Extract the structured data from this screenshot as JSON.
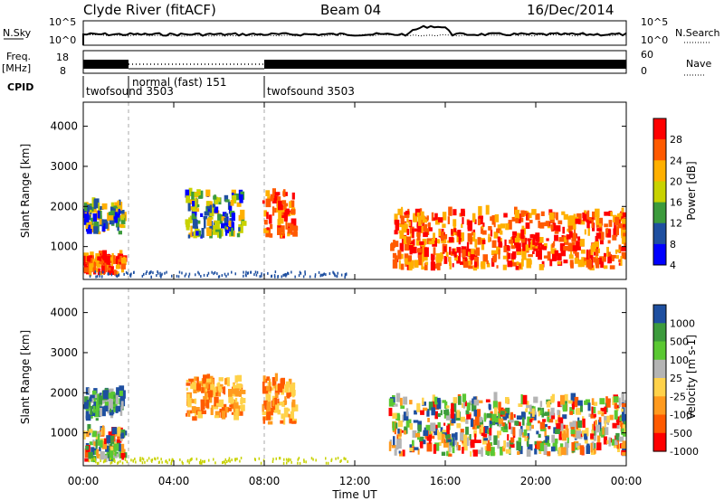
{
  "header": {
    "station": "Clyde River (fitACF)",
    "beam": "Beam 04",
    "date": "16/Dec/2014"
  },
  "status_panel": {
    "nsky_label": "N.Sky",
    "nsky_ticks": [
      "10^5",
      "10^0"
    ],
    "nsearch_label": "N.Search",
    "nsearch_ticks": [
      "10^5",
      "10^0"
    ],
    "freq_label": "Freq.",
    "freq_unit": "[MHz]",
    "freq_ticks": [
      "18",
      "8"
    ],
    "nave_label": "Nave",
    "nave_ticks": [
      "60",
      "0"
    ],
    "cpid_label": "CPID",
    "cpid_segments": [
      {
        "label": "twofsound 3503",
        "start_h": 0,
        "end_h": 2
      },
      {
        "label": "normal (fast) 151",
        "start_h": 2,
        "end_h": 8
      },
      {
        "label": "twofsound 3503",
        "start_h": 8,
        "end_h": 24
      }
    ]
  },
  "x_axis": {
    "label": "Time UT",
    "ticks": [
      "00:00",
      "04:00",
      "08:00",
      "12:00",
      "16:00",
      "20:00",
      "00:00"
    ]
  },
  "chart_data": [
    {
      "type": "heatmap",
      "ylabel": "Slant Range [km]",
      "xlabel": "",
      "xlim_hours": [
        0,
        24
      ],
      "ylim_km": [
        180,
        4600
      ],
      "yticks": [
        "1000",
        "2000",
        "3000",
        "4000"
      ],
      "colorbar": {
        "label": "Power [dB]",
        "ticks": [
          "28",
          "24",
          "20",
          "16",
          "12",
          "8",
          "4"
        ],
        "colors": [
          "#ff0000",
          "#ff5a00",
          "#ffb000",
          "#c8d200",
          "#3c9b3c",
          "#1e4fa0",
          "#0000ff"
        ]
      },
      "regions": [
        {
          "t0": 0.0,
          "t1": 1.8,
          "r0": 250,
          "r1": 700,
          "level": "high"
        },
        {
          "t0": 0.0,
          "t1": 1.7,
          "r0": 1300,
          "r1": 2000,
          "level": "mid"
        },
        {
          "t0": 4.5,
          "t1": 7.0,
          "r0": 1200,
          "r1": 2300,
          "level": "mid"
        },
        {
          "t0": 7.9,
          "t1": 9.3,
          "r0": 1200,
          "r1": 2300,
          "level": "high"
        },
        {
          "t0": 13.5,
          "t1": 24.0,
          "r0": 400,
          "r1": 1800,
          "level": "high"
        }
      ]
    },
    {
      "type": "heatmap",
      "ylabel": "Slant Range [km]",
      "xlabel": "Time UT",
      "xlim_hours": [
        0,
        24
      ],
      "ylim_km": [
        180,
        4600
      ],
      "yticks": [
        "1000",
        "2000",
        "3000",
        "4000"
      ],
      "colorbar": {
        "label": "Velocity [m s-1]",
        "ticks": [
          "1000",
          "500",
          "100",
          "25",
          "-25",
          "-100",
          "-500",
          "-1000"
        ],
        "colors": [
          "#1e4fa0",
          "#3c9b3c",
          "#5ac832",
          "#b4b4b4",
          "#ffd24a",
          "#ff9a1e",
          "#ff5a00",
          "#ff0000"
        ]
      },
      "regions": [
        {
          "t0": 0.0,
          "t1": 1.8,
          "r0": 250,
          "r1": 1000,
          "level": "mixed"
        },
        {
          "t0": 0.0,
          "t1": 1.7,
          "r0": 1300,
          "r1": 2000,
          "level": "positive"
        },
        {
          "t0": 4.5,
          "t1": 7.0,
          "r0": 1300,
          "r1": 2300,
          "level": "negative"
        },
        {
          "t0": 7.9,
          "t1": 9.3,
          "r0": 1200,
          "r1": 2300,
          "level": "negative"
        },
        {
          "t0": 13.5,
          "t1": 24.0,
          "r0": 400,
          "r1": 1800,
          "level": "mixed"
        }
      ]
    }
  ]
}
